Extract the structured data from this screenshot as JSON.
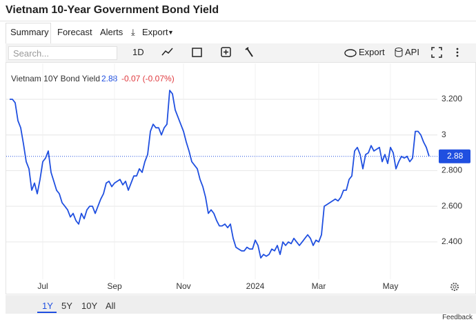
{
  "header": {
    "title": "Vietnam 10-Year Government Bond Yield"
  },
  "tabs": [
    "Summary",
    "Forecast",
    "Alerts",
    "Export"
  ],
  "toolbar": {
    "search_placeholder": "Search...",
    "interval": "1D",
    "export": "Export",
    "api": "API"
  },
  "chart_data": {
    "type": "line",
    "series": [
      {
        "name": "Vietnam 10Y Bond Yield",
        "color": "#1f4fe0",
        "values": [
          3.2,
          3.2,
          3.18,
          3.08,
          3.04,
          2.95,
          2.85,
          2.81,
          2.69,
          2.73,
          2.67,
          2.75,
          2.85,
          2.87,
          2.91,
          2.79,
          2.74,
          2.69,
          2.67,
          2.62,
          2.6,
          2.58,
          2.54,
          2.56,
          2.52,
          2.5,
          2.56,
          2.53,
          2.58,
          2.6,
          2.6,
          2.56,
          2.6,
          2.64,
          2.67,
          2.73,
          2.74,
          2.71,
          2.73,
          2.74,
          2.75,
          2.72,
          2.74,
          2.69,
          2.73,
          2.77,
          2.77,
          2.81,
          2.79,
          2.85,
          2.89,
          3.02,
          3.06,
          3.04,
          3.04,
          3.0,
          3.04,
          3.06,
          3.25,
          3.23,
          3.14,
          3.1,
          3.06,
          3.02,
          2.96,
          2.91,
          2.85,
          2.83,
          2.81,
          2.75,
          2.71,
          2.65,
          2.56,
          2.58,
          2.56,
          2.52,
          2.49,
          2.49,
          2.5,
          2.48,
          2.5,
          2.42,
          2.37,
          2.36,
          2.35,
          2.35,
          2.37,
          2.36,
          2.36,
          2.41,
          2.38,
          2.31,
          2.33,
          2.32,
          2.33,
          2.36,
          2.35,
          2.38,
          2.33,
          2.4,
          2.38,
          2.4,
          2.39,
          2.42,
          2.4,
          2.38,
          2.4,
          2.42,
          2.44,
          2.42,
          2.38,
          2.41,
          2.4,
          2.44,
          2.6,
          2.61,
          2.62,
          2.63,
          2.64,
          2.63,
          2.65,
          2.69,
          2.69,
          2.75,
          2.77,
          2.91,
          2.93,
          2.89,
          2.81,
          2.89,
          2.9,
          2.94,
          2.91,
          2.92,
          2.93,
          2.85,
          2.89,
          2.84,
          2.93,
          2.9,
          2.81,
          2.85,
          2.88,
          2.87,
          2.88,
          2.85,
          2.87,
          3.02,
          3.02,
          3.0,
          2.96,
          2.93,
          2.88
        ]
      }
    ],
    "last_value": 2.88,
    "change": "-0.07 (-0.07%)",
    "ylim": [
      2.21,
      3.37
    ],
    "yticks": [
      {
        "value": 2.4,
        "label": "2.400"
      },
      {
        "value": 2.6,
        "label": "2.600"
      },
      {
        "value": 2.8,
        "label": "2.800"
      },
      3,
      {
        "value": 3.2,
        "label": "3.200"
      }
    ],
    "xticks": [
      {
        "value": 12,
        "label": "Jul"
      },
      {
        "value": 38,
        "label": "Sep"
      },
      {
        "value": 63,
        "label": "Nov"
      },
      {
        "value": 89,
        "label": "2024"
      },
      {
        "value": 112,
        "label": "Mar"
      },
      {
        "value": 138,
        "label": "May"
      }
    ],
    "grid": true
  },
  "range_buttons": [
    "1Y",
    "5Y",
    "10Y",
    "All"
  ],
  "feedback": "Feedback"
}
